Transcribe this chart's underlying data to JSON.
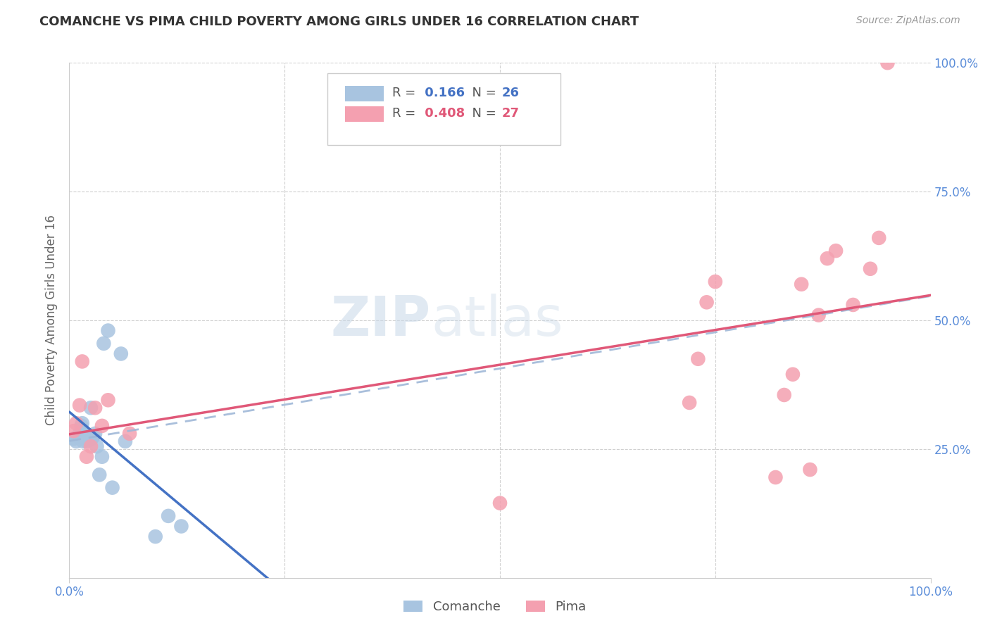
{
  "title": "COMANCHE VS PIMA CHILD POVERTY AMONG GIRLS UNDER 16 CORRELATION CHART",
  "source": "Source: ZipAtlas.com",
  "ylabel": "Child Poverty Among Girls Under 16",
  "xlim": [
    0,
    1
  ],
  "ylim": [
    0,
    1
  ],
  "comanche_color": "#a8c4e0",
  "pima_color": "#f4a0b0",
  "comanche_R": 0.166,
  "comanche_N": 26,
  "pima_R": 0.408,
  "pima_N": 27,
  "comanche_x": [
    0.005,
    0.008,
    0.01,
    0.012,
    0.014,
    0.015,
    0.016,
    0.018,
    0.02,
    0.022,
    0.024,
    0.025,
    0.026,
    0.028,
    0.03,
    0.032,
    0.035,
    0.038,
    0.04,
    0.045,
    0.05,
    0.06,
    0.065,
    0.1,
    0.115,
    0.13
  ],
  "comanche_y": [
    0.27,
    0.265,
    0.275,
    0.28,
    0.295,
    0.3,
    0.265,
    0.28,
    0.265,
    0.27,
    0.275,
    0.33,
    0.27,
    0.275,
    0.28,
    0.255,
    0.2,
    0.235,
    0.455,
    0.48,
    0.175,
    0.435,
    0.265,
    0.08,
    0.12,
    0.1
  ],
  "pima_x": [
    0.005,
    0.008,
    0.012,
    0.015,
    0.02,
    0.025,
    0.03,
    0.038,
    0.045,
    0.07,
    0.5,
    0.72,
    0.73,
    0.74,
    0.75,
    0.82,
    0.83,
    0.84,
    0.85,
    0.86,
    0.87,
    0.88,
    0.89,
    0.91,
    0.93,
    0.94,
    0.95
  ],
  "pima_y": [
    0.285,
    0.3,
    0.335,
    0.42,
    0.235,
    0.255,
    0.33,
    0.295,
    0.345,
    0.28,
    0.145,
    0.34,
    0.425,
    0.535,
    0.575,
    0.195,
    0.355,
    0.395,
    0.57,
    0.21,
    0.51,
    0.62,
    0.635,
    0.53,
    0.6,
    0.66,
    1.0
  ],
  "comanche_line_color": "#4472c4",
  "pima_line_color": "#e05878",
  "dashed_line_color": "#a0b8d8",
  "watermark_part1": "ZIP",
  "watermark_part2": "atlas",
  "background_color": "#ffffff",
  "grid_color": "#d0d0d0",
  "title_color": "#333333",
  "source_color": "#999999",
  "tick_color": "#5b8dd9",
  "ylabel_color": "#666666",
  "legend_R_color_comanche": "#4472c4",
  "legend_R_color_pima": "#e05878",
  "legend_N_color": "#333333"
}
